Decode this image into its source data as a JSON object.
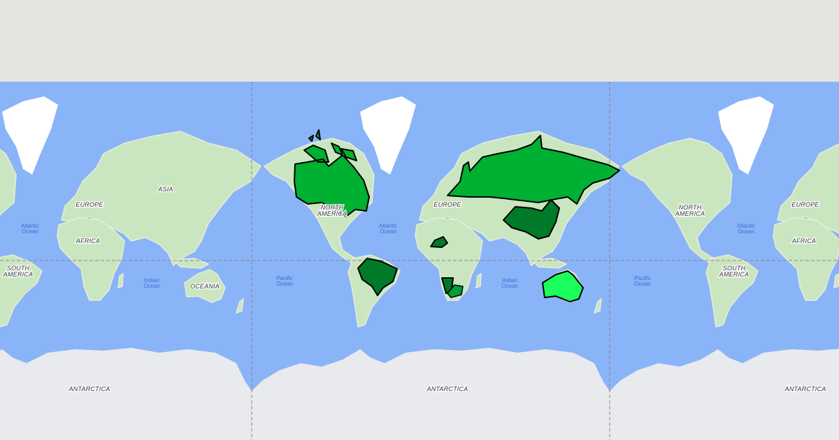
{
  "map": {
    "colors": {
      "ocean": "#8ab4f8",
      "land": "#e9ecd8",
      "vegetation": "#b8dfb0",
      "ice": "#ffffff",
      "antarctica": "#e8eaed",
      "border": "#000000"
    },
    "continent_labels": {
      "north_america": [
        "NORTH",
        "AMERICA"
      ],
      "south_america": [
        "SOUTH",
        "AMERICA"
      ],
      "europe": "EUROPE",
      "africa": "AFRICA",
      "asia": "ASIA",
      "oceania": "OCEANIA",
      "antarctica": "ANTARCTICA"
    },
    "ocean_labels": {
      "atlantic": [
        "Atlantic",
        "Ocean"
      ],
      "pacific": [
        "Pacific",
        "Ocean"
      ],
      "indian": [
        "Indian",
        "Ocean"
      ]
    },
    "highlighted_regions": [
      {
        "name": "Canada",
        "color": "#00b032"
      },
      {
        "name": "Russia",
        "color": "#00b032"
      },
      {
        "name": "China",
        "color": "#007a28"
      },
      {
        "name": "Brazil",
        "color": "#007a28"
      },
      {
        "name": "Niger",
        "color": "#007a28"
      },
      {
        "name": "Namibia",
        "color": "#007a28"
      },
      {
        "name": "South Africa",
        "color": "#00a03a"
      },
      {
        "name": "Australia",
        "color": "#1aff5c"
      }
    ]
  }
}
